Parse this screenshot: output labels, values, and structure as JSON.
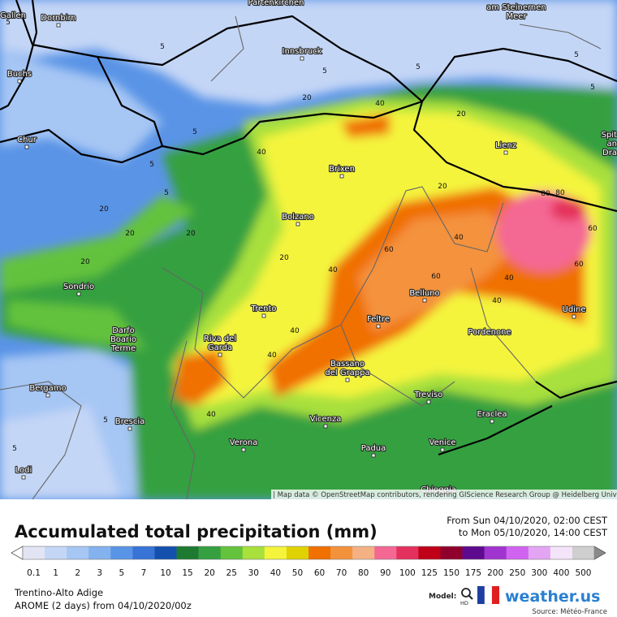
{
  "title": "Accumulated total precipitation (mm)",
  "period": [
    "From Sun 04/10/2020, 02:00 CEST",
    "to Mon 05/10/2020, 14:00 CEST"
  ],
  "region": "Trentino-Alto Adige",
  "model_run": "AROME (2 days) from 04/10/2020/00z",
  "attribution": "| Map data © OpenStreetMap contributors, rendering GIScience Research Group @ Heidelberg University",
  "model_label": "Model:",
  "hd": "HD",
  "brand": "weather.us",
  "source": "Source: Météo-France",
  "legend": {
    "values": [
      0.1,
      1,
      2,
      3,
      5,
      7,
      10,
      15,
      20,
      25,
      30,
      40,
      50,
      60,
      70,
      80,
      90,
      100,
      125,
      150,
      175,
      200,
      250,
      300,
      400,
      500
    ],
    "colors": [
      "#e2e4f4",
      "#c4d6f6",
      "#a6c6f4",
      "#84b2ee",
      "#5a94e6",
      "#3874d6",
      "#1450ae",
      "#1e7a30",
      "#34a040",
      "#64c23c",
      "#a8e03c",
      "#f4f43c",
      "#e0d200",
      "#f07000",
      "#f4923c",
      "#f4b284",
      "#f46894",
      "#e4305c",
      "#c00018",
      "#90002c",
      "#5e0a8e",
      "#a034d0",
      "#d064f0",
      "#e4a4f4",
      "#f4e4fa",
      "#cfcfcf"
    ]
  },
  "cities": [
    [
      "Gallen"
    ],
    [
      "Dornbirn"
    ],
    [
      "Partenkirchen"
    ],
    [
      "Innsbruck"
    ],
    [
      "am Steinernen",
      "Meer"
    ],
    [
      "Buchs"
    ],
    [
      "Chur"
    ],
    [
      "Lienz"
    ],
    [
      "Spit",
      "an",
      "Dra"
    ],
    [
      "Brixen"
    ],
    [
      "Bolzano"
    ],
    [
      "Sondrio"
    ],
    [
      "Trento"
    ],
    [
      "Belluno"
    ],
    [
      "Udine"
    ],
    [
      "Darfo",
      "Boario",
      "Terme"
    ],
    [
      "Riva del",
      "Garda"
    ],
    [
      "Feltre"
    ],
    [
      "Pordenone"
    ],
    [
      "Bassano",
      "del Grappa"
    ],
    [
      "Bergamo"
    ],
    [
      "Treviso"
    ],
    [
      "Eraclea"
    ],
    [
      "Brescia"
    ],
    [
      "Vicenza"
    ],
    [
      "Verona"
    ],
    [
      "Padua"
    ],
    [
      "Venice"
    ],
    [
      "Lodi"
    ],
    [
      "Chioggia"
    ]
  ],
  "contour_labels": [
    5,
    5,
    5,
    5,
    5,
    5,
    5,
    5,
    5,
    20,
    20,
    20,
    20,
    20,
    20,
    20,
    40,
    40,
    40,
    40,
    40,
    40,
    40,
    40,
    40,
    60,
    60,
    60,
    60,
    80,
    80,
    20,
    5,
    5
  ]
}
